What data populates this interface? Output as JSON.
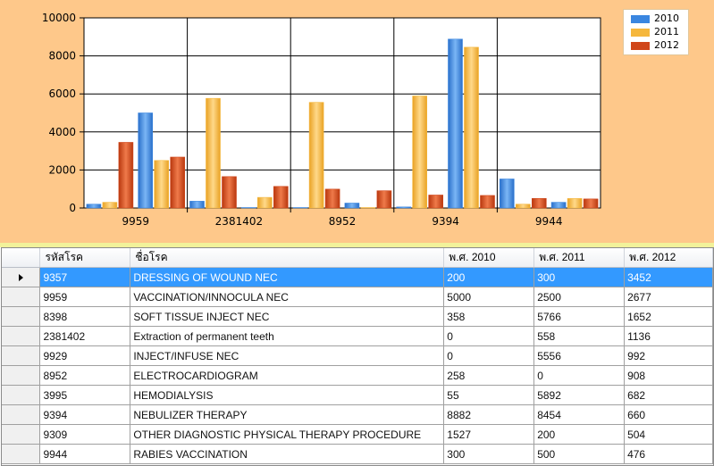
{
  "chart_data": {
    "type": "bar",
    "categories": [
      "9357",
      "9959",
      "8398",
      "2381402",
      "9929",
      "8952",
      "3995",
      "9394",
      "9309",
      "9944"
    ],
    "tick_labels": [
      "9959",
      "2381402",
      "8952",
      "9394",
      "9944"
    ],
    "ylim": [
      0,
      10000
    ],
    "yticks": [
      "0",
      "2000",
      "4000",
      "6000",
      "8000",
      "10000"
    ],
    "grid": true,
    "legend_position": "top-right",
    "series": [
      {
        "name": "2010",
        "color": "#3a86e0",
        "values": [
          200,
          5000,
          358,
          0,
          0,
          258,
          55,
          8882,
          1527,
          300
        ]
      },
      {
        "name": "2011",
        "color": "#f5b73c",
        "values": [
          300,
          2500,
          5766,
          558,
          5556,
          0,
          5892,
          8454,
          200,
          500
        ]
      },
      {
        "name": "2012",
        "color": "#d0461a",
        "values": [
          3452,
          2677,
          1652,
          1136,
          992,
          908,
          682,
          660,
          504,
          476
        ]
      }
    ]
  },
  "table": {
    "columns": [
      "รหัสโรค",
      "ชื่อโรค",
      "พ.ศ. 2010",
      "พ.ศ. 2011",
      "พ.ศ. 2012"
    ],
    "rows": [
      {
        "code": "9357",
        "name": "DRESSING OF WOUND NEC",
        "y2010": "200",
        "y2011": "300",
        "y2012": "3452",
        "selected": true
      },
      {
        "code": "9959",
        "name": "VACCINATION/INNOCULA NEC",
        "y2010": "5000",
        "y2011": "2500",
        "y2012": "2677"
      },
      {
        "code": "8398",
        "name": "SOFT TISSUE INJECT NEC",
        "y2010": "358",
        "y2011": "5766",
        "y2012": "1652"
      },
      {
        "code": "2381402",
        "name": "Extraction of permanent teeth",
        "y2010": "0",
        "y2011": "558",
        "y2012": "1136"
      },
      {
        "code": "9929",
        "name": "INJECT/INFUSE NEC",
        "y2010": "0",
        "y2011": "5556",
        "y2012": "992"
      },
      {
        "code": "8952",
        "name": "ELECTROCARDIOGRAM",
        "y2010": "258",
        "y2011": "0",
        "y2012": "908"
      },
      {
        "code": "3995",
        "name": "HEMODIALYSIS",
        "y2010": "55",
        "y2011": "5892",
        "y2012": "682"
      },
      {
        "code": "9394",
        "name": "NEBULIZER THERAPY",
        "y2010": "8882",
        "y2011": "8454",
        "y2012": "660"
      },
      {
        "code": "9309",
        "name": "OTHER DIAGNOSTIC  PHYSICAL THERAPY PROCEDURE",
        "y2010": "1527",
        "y2011": "200",
        "y2012": "504"
      },
      {
        "code": "9944",
        "name": "RABIES VACCINATION",
        "y2010": "300",
        "y2011": "500",
        "y2012": "476"
      }
    ]
  }
}
